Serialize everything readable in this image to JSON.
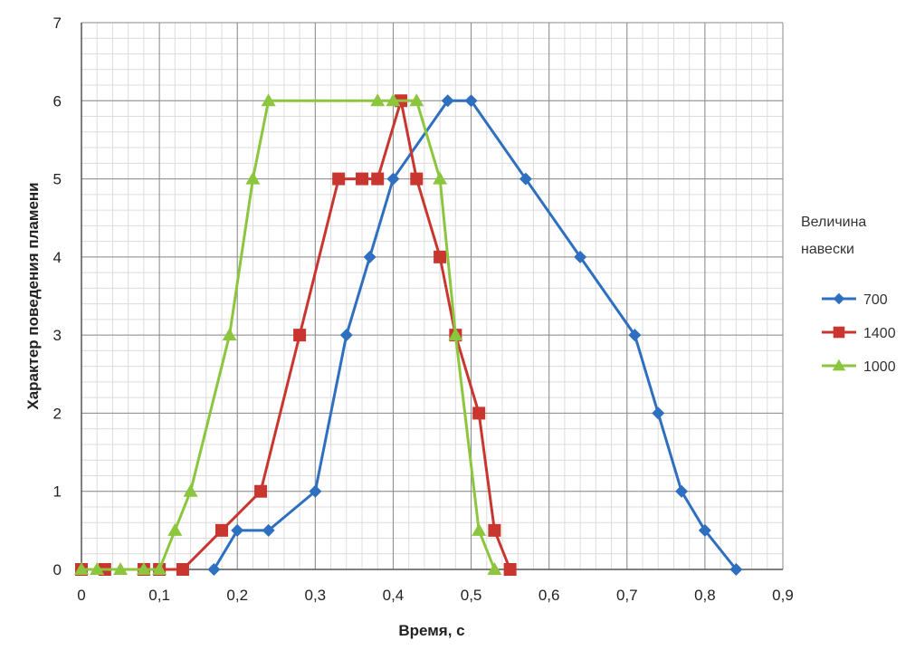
{
  "chart_data": {
    "type": "line",
    "title": "",
    "xlabel": "Время, с",
    "ylabel": "Характер поведения пламени",
    "xlim": [
      0,
      0.9
    ],
    "ylim": [
      0,
      7
    ],
    "x_ticks": [
      "0",
      "0,1",
      "0,2",
      "0,3",
      "0,4",
      "0,5",
      "0,6",
      "0,7",
      "0,8",
      "0,9"
    ],
    "y_ticks": [
      "0",
      "1",
      "2",
      "3",
      "4",
      "5",
      "6",
      "7"
    ],
    "grid": true,
    "legend": {
      "title_lines": [
        "Величина",
        "навески"
      ],
      "placement": "right"
    },
    "series": [
      {
        "name": "700",
        "color": "#2e6fc0",
        "marker": "diamond",
        "points": [
          [
            0.17,
            0
          ],
          [
            0.2,
            0.5
          ],
          [
            0.24,
            0.5
          ],
          [
            0.3,
            1
          ],
          [
            0.34,
            3
          ],
          [
            0.37,
            4
          ],
          [
            0.4,
            5
          ],
          [
            0.47,
            6
          ],
          [
            0.5,
            6
          ],
          [
            0.57,
            5
          ],
          [
            0.64,
            4
          ],
          [
            0.71,
            3
          ],
          [
            0.74,
            2
          ],
          [
            0.77,
            1
          ],
          [
            0.8,
            0.5
          ],
          [
            0.84,
            0
          ]
        ]
      },
      {
        "name": "1400",
        "color": "#c8362f",
        "marker": "square",
        "points": [
          [
            0,
            0
          ],
          [
            0.03,
            0
          ],
          [
            0.08,
            0
          ],
          [
            0.1,
            0
          ],
          [
            0.13,
            0
          ],
          [
            0.18,
            0.5
          ],
          [
            0.23,
            1
          ],
          [
            0.28,
            3
          ],
          [
            0.33,
            5
          ],
          [
            0.36,
            5
          ],
          [
            0.38,
            5
          ],
          [
            0.41,
            6
          ],
          [
            0.43,
            5
          ],
          [
            0.46,
            4
          ],
          [
            0.48,
            3
          ],
          [
            0.51,
            2
          ],
          [
            0.53,
            0.5
          ],
          [
            0.55,
            0
          ]
        ]
      },
      {
        "name": "1000",
        "color": "#8cc63e",
        "marker": "triangle",
        "points": [
          [
            0,
            0
          ],
          [
            0.02,
            0
          ],
          [
            0.05,
            0
          ],
          [
            0.08,
            0
          ],
          [
            0.1,
            0
          ],
          [
            0.12,
            0.5
          ],
          [
            0.14,
            1
          ],
          [
            0.19,
            3
          ],
          [
            0.22,
            5
          ],
          [
            0.24,
            6
          ],
          [
            0.38,
            6
          ],
          [
            0.4,
            6
          ],
          [
            0.43,
            6
          ],
          [
            0.46,
            5
          ],
          [
            0.48,
            3
          ],
          [
            0.51,
            0.5
          ],
          [
            0.53,
            0
          ]
        ]
      }
    ]
  }
}
